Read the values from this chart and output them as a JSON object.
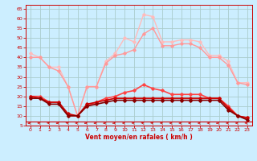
{
  "background_color": "#cceeff",
  "grid_color": "#aacccc",
  "xlabel": "Vent moyen/en rafales ( km/h )",
  "xlim": [
    -0.5,
    23.5
  ],
  "ylim": [
    5,
    67
  ],
  "yticks": [
    5,
    10,
    15,
    20,
    25,
    30,
    35,
    40,
    45,
    50,
    55,
    60,
    65
  ],
  "xticks": [
    0,
    1,
    2,
    3,
    4,
    5,
    6,
    7,
    8,
    9,
    10,
    11,
    12,
    13,
    14,
    15,
    16,
    17,
    18,
    19,
    20,
    21,
    22,
    23
  ],
  "lines": [
    {
      "x": [
        0,
        1,
        2,
        3,
        4,
        5,
        6,
        7,
        8,
        9,
        10,
        11,
        12,
        13,
        14,
        15,
        16,
        17,
        18,
        19,
        20,
        21,
        22,
        23
      ],
      "y": [
        42,
        40,
        35,
        35,
        25,
        10,
        25,
        25,
        38,
        42,
        50,
        48,
        62,
        61,
        48,
        48,
        49,
        49,
        48,
        41,
        41,
        38,
        27,
        27
      ],
      "color": "#ffbbbb",
      "lw": 1.0,
      "marker": "D",
      "ms": 1.8
    },
    {
      "x": [
        0,
        1,
        2,
        3,
        4,
        5,
        6,
        7,
        8,
        9,
        10,
        11,
        12,
        13,
        14,
        15,
        16,
        17,
        18,
        19,
        20,
        21,
        22,
        23
      ],
      "y": [
        40,
        40,
        35,
        33,
        25,
        10,
        25,
        25,
        37,
        41,
        42,
        44,
        52,
        55,
        46,
        46,
        47,
        47,
        45,
        40,
        40,
        36,
        27,
        26
      ],
      "color": "#ff9999",
      "lw": 1.0,
      "marker": "D",
      "ms": 1.8
    },
    {
      "x": [
        0,
        1,
        2,
        3,
        4,
        5,
        6,
        7,
        8,
        9,
        10,
        11,
        12,
        13,
        14,
        15,
        16,
        17,
        18,
        19,
        20,
        21,
        22,
        23
      ],
      "y": [
        20,
        20,
        17,
        17,
        10,
        10,
        15,
        17,
        19,
        20,
        22,
        23,
        26,
        24,
        23,
        21,
        21,
        21,
        21,
        19,
        19,
        15,
        10,
        9
      ],
      "color": "#ff4444",
      "lw": 1.2,
      "marker": "D",
      "ms": 1.8
    },
    {
      "x": [
        0,
        1,
        2,
        3,
        4,
        5,
        6,
        7,
        8,
        9,
        10,
        11,
        12,
        13,
        14,
        15,
        16,
        17,
        18,
        19,
        20,
        21,
        22,
        23
      ],
      "y": [
        20,
        19,
        17,
        17,
        11,
        10,
        16,
        17,
        18,
        19,
        19,
        19,
        19,
        19,
        19,
        19,
        19,
        19,
        19,
        19,
        19,
        14,
        10,
        9
      ],
      "color": "#cc0000",
      "lw": 1.2,
      "marker": "D",
      "ms": 1.8
    },
    {
      "x": [
        0,
        1,
        2,
        3,
        4,
        5,
        6,
        7,
        8,
        9,
        10,
        11,
        12,
        13,
        14,
        15,
        16,
        17,
        18,
        19,
        20,
        21,
        22,
        23
      ],
      "y": [
        19,
        19,
        16,
        16,
        10,
        10,
        15,
        16,
        17,
        18,
        18,
        18,
        18,
        18,
        18,
        18,
        18,
        18,
        18,
        18,
        18,
        13,
        10,
        8
      ],
      "color": "#880000",
      "lw": 1.2,
      "marker": "D",
      "ms": 1.8
    }
  ],
  "arrow_color": "#cc0000",
  "xlabel_color": "#cc0000",
  "tick_color": "#cc0000"
}
